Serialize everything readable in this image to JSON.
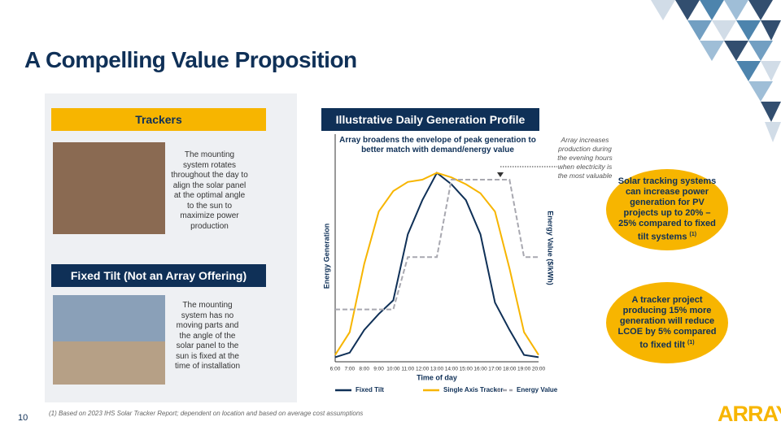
{
  "title": "A Compelling Value Proposition",
  "trackers": {
    "heading": "Trackers",
    "text": "The mounting system rotates throughout the day to align the solar panel at the optimal angle to the sun to maximize power production"
  },
  "fixed_tilt": {
    "heading": "Fixed Tilt (Not an Array Offering)",
    "text": "The mounting system has no moving parts and the angle of the solar panel to the sun is fixed at the time of installation"
  },
  "chart_data": {
    "type": "line",
    "title": "Illustrative Daily Generation Profile",
    "subtitle": "Array broadens the envelope of peak generation to better match with demand/energy value",
    "annotation": "Array increases production during the evening hours when electricity is the most valuable",
    "xlabel": "Time of day",
    "ylabel": "Energy Generation",
    "y2label": "Energy Value ($/kWh)",
    "categories": [
      "6:00",
      "7:00",
      "8:00",
      "9:00",
      "10:00",
      "11:00",
      "12:00",
      "13:00",
      "14:00",
      "15:00",
      "16:00",
      "17:00",
      "18:00",
      "19:00",
      "20:00"
    ],
    "ylim": [
      0,
      100
    ],
    "y2lim": [
      0,
      100
    ],
    "series": [
      {
        "name": "Fixed Tilt",
        "color": "#0f3057",
        "values": [
          2,
          4,
          14,
          21,
          27,
          56,
          71,
          83,
          78,
          71,
          56,
          26,
          14,
          3,
          2
        ]
      },
      {
        "name": "Single Axis Tracker",
        "color": "#f7b500",
        "values": [
          3,
          13,
          43,
          66,
          75,
          79,
          80,
          83,
          81,
          78,
          74,
          66,
          41,
          13,
          3
        ]
      },
      {
        "name": "Energy Value",
        "color": "#a8a8b0",
        "dashed": true,
        "axis": "y2",
        "values": [
          23,
          23,
          23,
          23,
          23,
          46,
          46,
          46,
          80,
          80,
          80,
          80,
          80,
          46,
          46
        ]
      }
    ]
  },
  "callouts": [
    {
      "text": "Solar tracking systems can increase power generation for PV projects up to 20% – 25% compared to fixed tilt systems",
      "note": "(1)"
    },
    {
      "text": "A tracker project producing 15% more generation will reduce LCOE by 5% compared to fixed tilt",
      "note": "(1)"
    }
  ],
  "footnote": "(1) Based on 2023 IHS Solar Tracker Report; dependent on location and based on average cost assumptions",
  "page_number": "10",
  "logo": "ARRAY"
}
